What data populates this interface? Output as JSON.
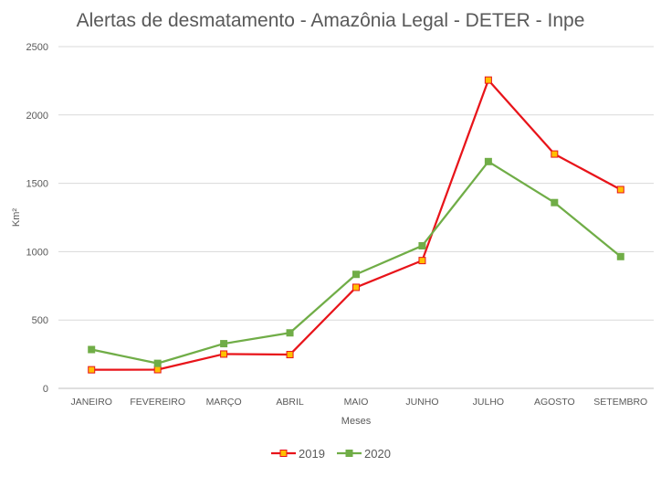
{
  "chart_data": {
    "type": "line",
    "title": "Alertas de desmatamento - Amazônia Legal - DETER - Inpe",
    "xlabel": "Meses",
    "ylabel": "Km²",
    "ylim": [
      0,
      2500
    ],
    "yticks": [
      "0",
      "500",
      "1000",
      "1500",
      "2000",
      "2500"
    ],
    "grid": true,
    "legend_placement": "bottom",
    "categories": [
      "JANEIRO",
      "FEVEREIRO",
      "MARÇO",
      "ABRIL",
      "MAIO",
      "JUNHO",
      "JULHO",
      "AGOSTO",
      "SETEMBRO"
    ],
    "series": [
      {
        "name": "2019",
        "color": "#e8141a",
        "marker_fill": "#ffc000",
        "values": [
          136,
          137,
          251,
          247,
          739,
          935,
          2255,
          1714,
          1454
        ]
      },
      {
        "name": "2020",
        "color": "#70ad47",
        "marker_fill": "#70ad47",
        "values": [
          284,
          183,
          327,
          406,
          834,
          1043,
          1659,
          1359,
          964
        ]
      }
    ]
  }
}
